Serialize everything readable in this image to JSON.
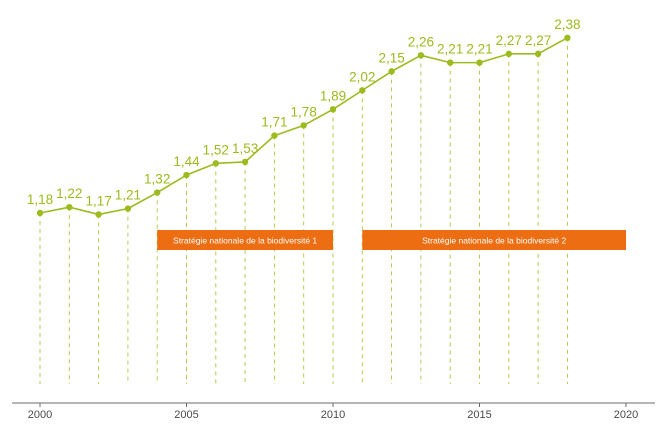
{
  "chart_data": {
    "type": "line",
    "title": "",
    "xlabel": "",
    "ylabel": "",
    "x": [
      2000,
      2001,
      2002,
      2003,
      2004,
      2005,
      2006,
      2007,
      2008,
      2009,
      2010,
      2011,
      2012,
      2013,
      2014,
      2015,
      2016,
      2017,
      2018
    ],
    "values": [
      1.18,
      1.22,
      1.17,
      1.21,
      1.32,
      1.44,
      1.52,
      1.53,
      1.71,
      1.78,
      1.89,
      2.02,
      2.15,
      2.26,
      2.21,
      2.21,
      2.27,
      2.27,
      2.38
    ],
    "data_labels": [
      "1,18",
      "1,22",
      "1,17",
      "1,21",
      "1,32",
      "1,44",
      "1,52",
      "1,53",
      "1,71",
      "1,78",
      "1,89",
      "2,02",
      "2,15",
      "2,26",
      "2,21",
      "2,21",
      "2,27",
      "2,27",
      "2,38"
    ],
    "x_ticks": [
      2000,
      2005,
      2010,
      2015,
      2020
    ],
    "x_tick_labels": [
      "2000",
      "2005",
      "2010",
      "2015",
      "2020"
    ],
    "xlim": [
      2000,
      2020
    ],
    "grid": false,
    "drop_lines": true,
    "annotations": [
      {
        "text": "Stratégie nationale de la biodiversité 1",
        "x_start": 2004,
        "x_end": 2010
      },
      {
        "text": "Stratégie nationale de la biodiversité 2",
        "x_start": 2011,
        "x_end": 2020
      }
    ],
    "colors": {
      "line": "#9bbb1e",
      "band": "#ec6d12",
      "axis": "#6b6b6b",
      "band_text": "#ffffff"
    }
  }
}
